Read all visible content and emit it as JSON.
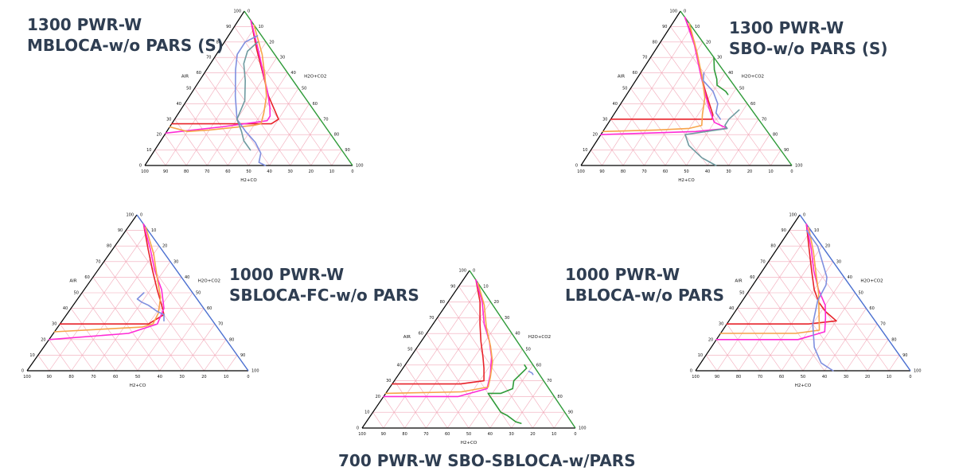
{
  "colors": {
    "red": "#e8222a",
    "magenta": "#ff2bd6",
    "orange": "#f7a44a",
    "blue": "#7f8fdf",
    "green": "#2e9a38",
    "gray": "#6f9aa0",
    "caption": "#2f3e52",
    "grid": "#f2a8b8"
  },
  "chart_data": [
    {
      "type": "ternary",
      "id": "p1",
      "caption_lines": [
        "1300 PWR-W",
        "MBLOCA-w/o PARS (S)"
      ],
      "axis_left_label": "AIR",
      "axis_right_label": "H2O+CO2",
      "axis_base_label": "H2+CO",
      "left_ticks": [
        "0",
        "10",
        "20",
        "30",
        "40",
        "50",
        "60",
        "70",
        "80",
        "90",
        "100"
      ],
      "right_ticks": [
        "0",
        "10",
        "20",
        "30",
        "40",
        "50",
        "60",
        "70",
        "80",
        "90",
        "100"
      ],
      "base_ticks": [
        "100",
        "90",
        "80",
        "70",
        "60",
        "50",
        "40",
        "30",
        "20",
        "10",
        "0"
      ],
      "right_edge_color": "#2e9a38",
      "series": [
        {
          "color": "red",
          "points": [
            [
              94,
              6
            ],
            [
              75,
              18
            ],
            [
              60,
              28
            ],
            [
              45,
              38
            ],
            [
              35,
              46
            ],
            [
              30,
              50
            ],
            [
              27,
              48
            ],
            [
              27,
              33
            ],
            [
              27,
              0
            ]
          ]
        },
        {
          "color": "magenta",
          "points": [
            [
              94,
              6
            ],
            [
              76,
              18
            ],
            [
              62,
              27
            ],
            [
              48,
              36
            ],
            [
              38,
              42
            ],
            [
              32,
              45
            ],
            [
              29,
              45
            ],
            [
              25,
              25
            ],
            [
              21,
              0
            ]
          ]
        },
        {
          "color": "orange",
          "points": [
            [
              91,
              9
            ],
            [
              72,
              22
            ],
            [
              58,
              30
            ],
            [
              45,
              37
            ],
            [
              34,
              41
            ],
            [
              27,
              43
            ],
            [
              26,
              40
            ],
            [
              23,
              20
            ],
            [
              22,
              10
            ],
            [
              25,
              0
            ]
          ]
        },
        {
          "color": "blue",
          "points": [
            [
              84,
              14
            ],
            [
              80,
              10
            ],
            [
              72,
              10
            ],
            [
              62,
              14
            ],
            [
              45,
              22
            ],
            [
              30,
              30
            ],
            [
              22,
              38
            ],
            [
              15,
              46
            ],
            [
              8,
              52
            ],
            [
              2,
              54
            ],
            [
              0,
              58
            ]
          ]
        },
        {
          "color": "gray",
          "points": [
            [
              80,
              16
            ],
            [
              74,
              14
            ],
            [
              66,
              16
            ],
            [
              55,
              22
            ],
            [
              42,
              28
            ],
            [
              30,
              30
            ],
            [
              22,
              36
            ],
            [
              16,
              40
            ],
            [
              10,
              46
            ]
          ]
        }
      ]
    },
    {
      "type": "ternary",
      "id": "p2",
      "caption_lines": [
        "1300 PWR-W",
        "SBO-w/o PARS (S)"
      ],
      "axis_left_label": "AIR",
      "axis_right_label": "H2O+CO2",
      "axis_base_label": "H2+CO",
      "left_ticks": [
        "0",
        "10",
        "20",
        "30",
        "40",
        "50",
        "60",
        "70",
        "80",
        "90",
        "100"
      ],
      "right_ticks": [
        "0",
        "10",
        "20",
        "30",
        "40",
        "50",
        "60",
        "70",
        "80",
        "90",
        "100"
      ],
      "base_ticks": [
        "100",
        "90",
        "80",
        "70",
        "60",
        "50",
        "40",
        "30",
        "20",
        "10",
        "0"
      ],
      "right_edge_color": "#2e9a38",
      "series": [
        {
          "color": "red",
          "points": [
            [
              96,
              4
            ],
            [
              80,
              16
            ],
            [
              64,
              26
            ],
            [
              50,
              35
            ],
            [
              40,
              42
            ],
            [
              33,
              47
            ],
            [
              30,
              48
            ],
            [
              30,
              35
            ],
            [
              30,
              0
            ]
          ]
        },
        {
          "color": "magenta",
          "points": [
            [
              96,
              4
            ],
            [
              78,
              17
            ],
            [
              62,
              27
            ],
            [
              48,
              36
            ],
            [
              36,
              44
            ],
            [
              28,
              50
            ],
            [
              24,
              58
            ],
            [
              22,
              44
            ],
            [
              20,
              0
            ]
          ]
        },
        {
          "color": "orange",
          "points": [
            [
              92,
              8
            ],
            [
              74,
              20
            ],
            [
              58,
              30
            ],
            [
              44,
              38
            ],
            [
              33,
              42
            ],
            [
              26,
              45
            ],
            [
              24,
              40
            ],
            [
              23,
              25
            ],
            [
              22,
              0
            ]
          ]
        },
        {
          "color": "green",
          "points": [
            [
              70,
              30
            ],
            [
              62,
              34
            ],
            [
              56,
              38
            ],
            [
              52,
              40
            ],
            [
              48,
              46
            ],
            [
              46,
              48
            ]
          ]
        },
        {
          "color": "gray",
          "points": [
            [
              36,
              58
            ],
            [
              30,
              56
            ],
            [
              26,
              56
            ],
            [
              24,
              58
            ],
            [
              20,
              40
            ],
            [
              13,
              45
            ],
            [
              5,
              55
            ],
            [
              0,
              64
            ]
          ]
        },
        {
          "color": "blue",
          "points": [
            [
              60,
              30
            ],
            [
              55,
              32
            ],
            [
              48,
              40
            ],
            [
              40,
              46
            ],
            [
              34,
              48
            ],
            [
              30,
              52
            ]
          ]
        }
      ]
    },
    {
      "type": "ternary",
      "id": "p3",
      "caption_lines": [
        "1000 PWR-W",
        "SBLOCA-FC-w/o PARS"
      ],
      "axis_left_label": "AIR",
      "axis_right_label": "H2O+CO2",
      "axis_base_label": "H2+CO",
      "left_ticks": [
        "0",
        "10",
        "20",
        "30",
        "40",
        "50",
        "60",
        "70",
        "80",
        "90",
        "100"
      ],
      "right_ticks": [
        "0",
        "10",
        "20",
        "30",
        "40",
        "50",
        "60",
        "70",
        "80",
        "90",
        "100"
      ],
      "base_ticks": [
        "100",
        "90",
        "80",
        "70",
        "60",
        "50",
        "40",
        "30",
        "20",
        "10",
        "0"
      ],
      "right_edge_color": "#4a6fd0",
      "series": [
        {
          "color": "red",
          "points": [
            [
              94,
              6
            ],
            [
              78,
              16
            ],
            [
              64,
              25
            ],
            [
              52,
              33
            ],
            [
              42,
              40
            ],
            [
              36,
              44
            ],
            [
              30,
              40
            ],
            [
              30,
              0
            ]
          ]
        },
        {
          "color": "magenta",
          "points": [
            [
              94,
              6
            ],
            [
              78,
              17
            ],
            [
              64,
              26
            ],
            [
              52,
              35
            ],
            [
              40,
              42
            ],
            [
              30,
              44
            ],
            [
              24,
              34
            ],
            [
              20,
              0
            ]
          ]
        },
        {
          "color": "orange",
          "points": [
            [
              92,
              8
            ],
            [
              75,
              20
            ],
            [
              60,
              29
            ],
            [
              47,
              37
            ],
            [
              37,
              41
            ],
            [
              30,
              42
            ],
            [
              28,
              38
            ],
            [
              25,
              0
            ]
          ]
        },
        {
          "color": "blue",
          "points": [
            [
              50,
              28
            ],
            [
              46,
              27
            ],
            [
              44,
              30
            ],
            [
              42,
              34
            ],
            [
              38,
              40
            ],
            [
              36,
              44
            ],
            [
              32,
              46
            ]
          ]
        }
      ]
    },
    {
      "type": "ternary",
      "id": "p4",
      "caption_lines": [
        "700 PWR-W SBO-SBLOCA-w/PARS"
      ],
      "axis_left_label": "AIR",
      "axis_right_label": "H2O+CO2",
      "axis_base_label": "H2+CO",
      "left_ticks": [
        "0",
        "10",
        "20",
        "30",
        "40",
        "50",
        "60",
        "70",
        "80",
        "90",
        "100"
      ],
      "right_ticks": [
        "0",
        "10",
        "20",
        "30",
        "40",
        "50",
        "60",
        "70",
        "80",
        "90",
        "100"
      ],
      "base_ticks": [
        "100",
        "90",
        "80",
        "70",
        "60",
        "50",
        "40",
        "30",
        "20",
        "10",
        "0"
      ],
      "right_edge_color": "#2e9a38",
      "series": [
        {
          "color": "red",
          "points": [
            [
              94,
              6
            ],
            [
              80,
              15
            ],
            [
              66,
              22
            ],
            [
              55,
              28
            ],
            [
              45,
              34
            ],
            [
              38,
              38
            ],
            [
              30,
              42
            ],
            [
              28,
              32
            ],
            [
              28,
              0
            ]
          ]
        },
        {
          "color": "magenta",
          "points": [
            [
              94,
              6
            ],
            [
              80,
              16
            ],
            [
              66,
              24
            ],
            [
              55,
              32
            ],
            [
              45,
              38
            ],
            [
              34,
              43
            ],
            [
              25,
              46
            ],
            [
              20,
              35
            ],
            [
              20,
              0
            ]
          ]
        },
        {
          "color": "orange",
          "points": [
            [
              92,
              8
            ],
            [
              78,
              18
            ],
            [
              64,
              26
            ],
            [
              52,
              34
            ],
            [
              42,
              40
            ],
            [
              32,
              44
            ],
            [
              26,
              46
            ],
            [
              23,
              35
            ],
            [
              22,
              0
            ]
          ]
        },
        {
          "color": "green",
          "points": [
            [
              40,
              56
            ],
            [
              38,
              58
            ],
            [
              30,
              56
            ],
            [
              25,
              58
            ],
            [
              22,
              54
            ],
            [
              22,
              48
            ],
            [
              16,
              54
            ],
            [
              10,
              60
            ],
            [
              8,
              64
            ],
            [
              4,
              70
            ],
            [
              3,
              73
            ]
          ]
        },
        {
          "color": "blue",
          "points": [
            [
              36,
              60
            ],
            [
              35,
              62
            ],
            [
              34,
              63
            ]
          ]
        }
      ]
    },
    {
      "type": "ternary",
      "id": "p5",
      "caption_lines": [
        "1000 PWR-W",
        "LBLOCA-w/o PARS"
      ],
      "axis_left_label": "AIR",
      "axis_right_label": "H2O+CO2",
      "axis_base_label": "H2+CO",
      "left_ticks": [
        "0",
        "10",
        "20",
        "30",
        "40",
        "50",
        "60",
        "70",
        "80",
        "90",
        "100"
      ],
      "right_ticks": [
        "0",
        "10",
        "20",
        "30",
        "40",
        "50",
        "60",
        "70",
        "80",
        "90",
        "100"
      ],
      "base_ticks": [
        "100",
        "90",
        "80",
        "70",
        "60",
        "50",
        "40",
        "30",
        "20",
        "10",
        "0"
      ],
      "right_edge_color": "#4a6fd0",
      "series": [
        {
          "color": "red",
          "points": [
            [
              94,
              6
            ],
            [
              78,
              15
            ],
            [
              64,
              23
            ],
            [
              52,
              30
            ],
            [
              44,
              36
            ],
            [
              38,
              42
            ],
            [
              32,
              50
            ],
            [
              30,
              38
            ],
            [
              30,
              0
            ]
          ]
        },
        {
          "color": "magenta",
          "points": [
            [
              94,
              6
            ],
            [
              78,
              16
            ],
            [
              64,
              24
            ],
            [
              52,
              32
            ],
            [
              42,
              40
            ],
            [
              34,
              44
            ],
            [
              25,
              48
            ],
            [
              20,
              38
            ],
            [
              20,
              0
            ]
          ]
        },
        {
          "color": "orange",
          "points": [
            [
              92,
              8
            ],
            [
              76,
              18
            ],
            [
              62,
              26
            ],
            [
              50,
              33
            ],
            [
              40,
              38
            ],
            [
              32,
              42
            ],
            [
              26,
              45
            ],
            [
              24,
              35
            ],
            [
              24,
              0
            ]
          ]
        },
        {
          "color": "blue",
          "points": [
            [
              90,
              8
            ],
            [
              80,
              18
            ],
            [
              60,
              32
            ],
            [
              55,
              34
            ],
            [
              45,
              35
            ],
            [
              30,
              40
            ],
            [
              15,
              48
            ],
            [
              5,
              56
            ],
            [
              0,
              64
            ]
          ]
        }
      ]
    }
  ]
}
